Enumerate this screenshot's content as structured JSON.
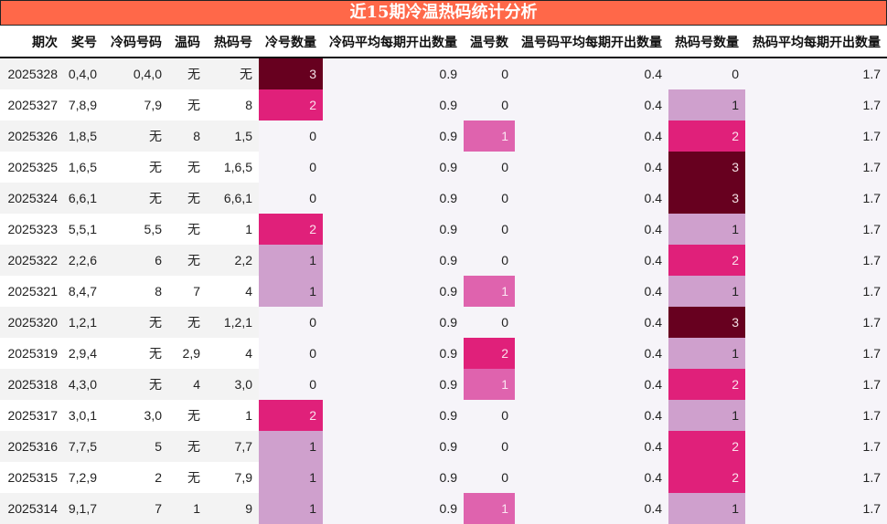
{
  "title": "近15期冷温热码统计分析",
  "columns": [
    {
      "key": "period",
      "label": "期次"
    },
    {
      "key": "draw",
      "label": "奖号"
    },
    {
      "key": "cold_nums",
      "label": "冷码号码"
    },
    {
      "key": "warm_nums",
      "label": "温码"
    },
    {
      "key": "hot_nums",
      "label": "热码号"
    },
    {
      "key": "cold_count",
      "label": "冷号数量"
    },
    {
      "key": "cold_avg",
      "label": "冷码平均每期开出数量"
    },
    {
      "key": "warm_count",
      "label": "温号数"
    },
    {
      "key": "warm_avg",
      "label": "温号码平均每期开出数量"
    },
    {
      "key": "hot_count",
      "label": "热码号数量"
    },
    {
      "key": "hot_avg",
      "label": "热码平均每期开出数量"
    }
  ],
  "colors": {
    "title_bg": "#ff6849",
    "level_1_cold_hot": "#cfa0cd",
    "level_1_warm": "#df63ae",
    "level_2": "#e0207a",
    "level_3": "#67001f"
  },
  "rows": [
    {
      "period": "2025328",
      "draw": "0,4,0",
      "cold_nums": "0,4,0",
      "warm_nums": "无",
      "hot_nums": "无",
      "cold_count": "3",
      "cold_avg": "0.9",
      "warm_count": "0",
      "warm_avg": "0.4",
      "hot_count": "0",
      "hot_avg": "1.7"
    },
    {
      "period": "2025327",
      "draw": "7,8,9",
      "cold_nums": "7,9",
      "warm_nums": "无",
      "hot_nums": "8",
      "cold_count": "2",
      "cold_avg": "0.9",
      "warm_count": "0",
      "warm_avg": "0.4",
      "hot_count": "1",
      "hot_avg": "1.7"
    },
    {
      "period": "2025326",
      "draw": "1,8,5",
      "cold_nums": "无",
      "warm_nums": "8",
      "hot_nums": "1,5",
      "cold_count": "0",
      "cold_avg": "0.9",
      "warm_count": "1",
      "warm_avg": "0.4",
      "hot_count": "2",
      "hot_avg": "1.7"
    },
    {
      "period": "2025325",
      "draw": "1,6,5",
      "cold_nums": "无",
      "warm_nums": "无",
      "hot_nums": "1,6,5",
      "cold_count": "0",
      "cold_avg": "0.9",
      "warm_count": "0",
      "warm_avg": "0.4",
      "hot_count": "3",
      "hot_avg": "1.7"
    },
    {
      "period": "2025324",
      "draw": "6,6,1",
      "cold_nums": "无",
      "warm_nums": "无",
      "hot_nums": "6,6,1",
      "cold_count": "0",
      "cold_avg": "0.9",
      "warm_count": "0",
      "warm_avg": "0.4",
      "hot_count": "3",
      "hot_avg": "1.7"
    },
    {
      "period": "2025323",
      "draw": "5,5,1",
      "cold_nums": "5,5",
      "warm_nums": "无",
      "hot_nums": "1",
      "cold_count": "2",
      "cold_avg": "0.9",
      "warm_count": "0",
      "warm_avg": "0.4",
      "hot_count": "1",
      "hot_avg": "1.7"
    },
    {
      "period": "2025322",
      "draw": "2,2,6",
      "cold_nums": "6",
      "warm_nums": "无",
      "hot_nums": "2,2",
      "cold_count": "1",
      "cold_avg": "0.9",
      "warm_count": "0",
      "warm_avg": "0.4",
      "hot_count": "2",
      "hot_avg": "1.7"
    },
    {
      "period": "2025321",
      "draw": "8,4,7",
      "cold_nums": "8",
      "warm_nums": "7",
      "hot_nums": "4",
      "cold_count": "1",
      "cold_avg": "0.9",
      "warm_count": "1",
      "warm_avg": "0.4",
      "hot_count": "1",
      "hot_avg": "1.7"
    },
    {
      "period": "2025320",
      "draw": "1,2,1",
      "cold_nums": "无",
      "warm_nums": "无",
      "hot_nums": "1,2,1",
      "cold_count": "0",
      "cold_avg": "0.9",
      "warm_count": "0",
      "warm_avg": "0.4",
      "hot_count": "3",
      "hot_avg": "1.7"
    },
    {
      "period": "2025319",
      "draw": "2,9,4",
      "cold_nums": "无",
      "warm_nums": "2,9",
      "hot_nums": "4",
      "cold_count": "0",
      "cold_avg": "0.9",
      "warm_count": "2",
      "warm_avg": "0.4",
      "hot_count": "1",
      "hot_avg": "1.7"
    },
    {
      "period": "2025318",
      "draw": "4,3,0",
      "cold_nums": "无",
      "warm_nums": "4",
      "hot_nums": "3,0",
      "cold_count": "0",
      "cold_avg": "0.9",
      "warm_count": "1",
      "warm_avg": "0.4",
      "hot_count": "2",
      "hot_avg": "1.7"
    },
    {
      "period": "2025317",
      "draw": "3,0,1",
      "cold_nums": "3,0",
      "warm_nums": "无",
      "hot_nums": "1",
      "cold_count": "2",
      "cold_avg": "0.9",
      "warm_count": "0",
      "warm_avg": "0.4",
      "hot_count": "1",
      "hot_avg": "1.7"
    },
    {
      "period": "2025316",
      "draw": "7,7,5",
      "cold_nums": "5",
      "warm_nums": "无",
      "hot_nums": "7,7",
      "cold_count": "1",
      "cold_avg": "0.9",
      "warm_count": "0",
      "warm_avg": "0.4",
      "hot_count": "2",
      "hot_avg": "1.7"
    },
    {
      "period": "2025315",
      "draw": "7,2,9",
      "cold_nums": "2",
      "warm_nums": "无",
      "hot_nums": "7,9",
      "cold_count": "1",
      "cold_avg": "0.9",
      "warm_count": "0",
      "warm_avg": "0.4",
      "hot_count": "2",
      "hot_avg": "1.7"
    },
    {
      "period": "2025314",
      "draw": "9,1,7",
      "cold_nums": "7",
      "warm_nums": "1",
      "hot_nums": "9",
      "cold_count": "1",
      "cold_avg": "0.9",
      "warm_count": "1",
      "warm_avg": "0.4",
      "hot_count": "1",
      "hot_avg": "1.7"
    }
  ]
}
